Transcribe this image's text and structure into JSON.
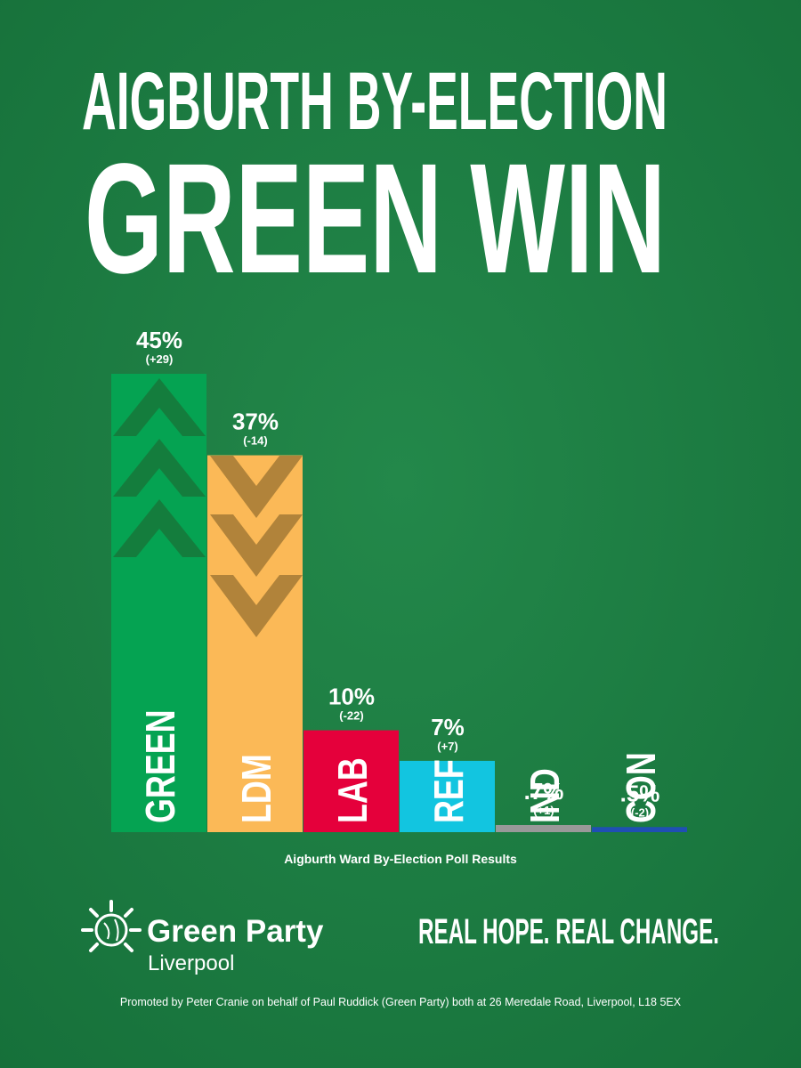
{
  "chart_data": {
    "type": "bar",
    "title": "AIGBURTH BY-ELECTION",
    "subtitle": "GREEN WIN",
    "caption": "Aigburth Ward By-Election Poll Results",
    "categories": [
      "GREEN",
      "LDM",
      "LAB",
      "REF",
      "IND",
      "CON"
    ],
    "values": [
      45,
      37,
      10,
      7,
      0.7,
      0.5
    ],
    "value_labels": [
      "45%",
      "37%",
      "10%",
      "7%",
      ".7%",
      ".5%"
    ],
    "changes": [
      "(+29)",
      "(-14)",
      "(-22)",
      "(+7)",
      "(+1)",
      "(-2)"
    ],
    "colors": [
      "#05a352",
      "#fbb957",
      "#e5003b",
      "#12c5e0",
      "#999999",
      "#1f4fb4"
    ]
  },
  "footer": {
    "brand": "Green Party",
    "place": "Liverpool",
    "slogan": "REAL HOPE. REAL CHANGE.",
    "imprint": "Promoted by Peter Cranie on behalf of Paul Ruddick (Green Party) both at 26 Meredale Road, Liverpool, L18 5EX"
  }
}
